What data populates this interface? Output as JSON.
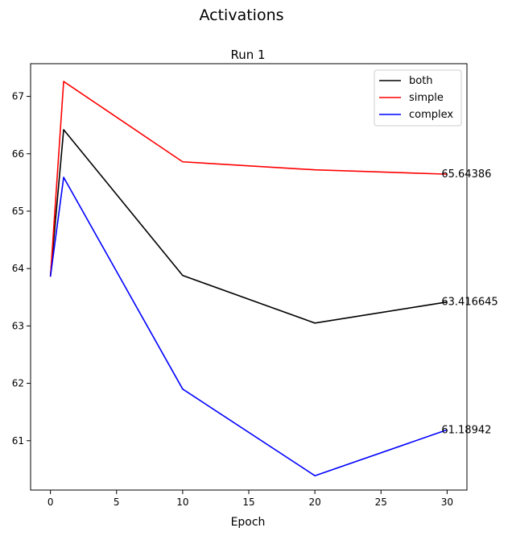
{
  "chart_data": {
    "type": "line",
    "suptitle": "Activations",
    "title": "Run 1",
    "xlabel": "Epoch",
    "ylabel": "",
    "x": [
      0,
      1,
      10,
      20,
      30
    ],
    "xlim": [
      -1.5,
      31.5
    ],
    "ylim": [
      60.14,
      67.57
    ],
    "xticks": [
      0,
      5,
      10,
      15,
      20,
      25,
      30
    ],
    "yticks": [
      61,
      62,
      63,
      64,
      65,
      66,
      67
    ],
    "grid": false,
    "legend_position": "top-right",
    "series": [
      {
        "name": "both",
        "color": "#000000",
        "values": [
          63.86,
          66.42,
          63.88,
          63.05,
          63.416645
        ],
        "end_label": "63.416645"
      },
      {
        "name": "simple",
        "color": "#ff0000",
        "values": [
          63.86,
          67.26,
          65.86,
          65.72,
          65.64386
        ],
        "end_label": "65.64386"
      },
      {
        "name": "complex",
        "color": "#0000ff",
        "values": [
          63.86,
          65.59,
          61.9,
          60.39,
          61.18942
        ],
        "end_label": "61.18942"
      }
    ]
  }
}
